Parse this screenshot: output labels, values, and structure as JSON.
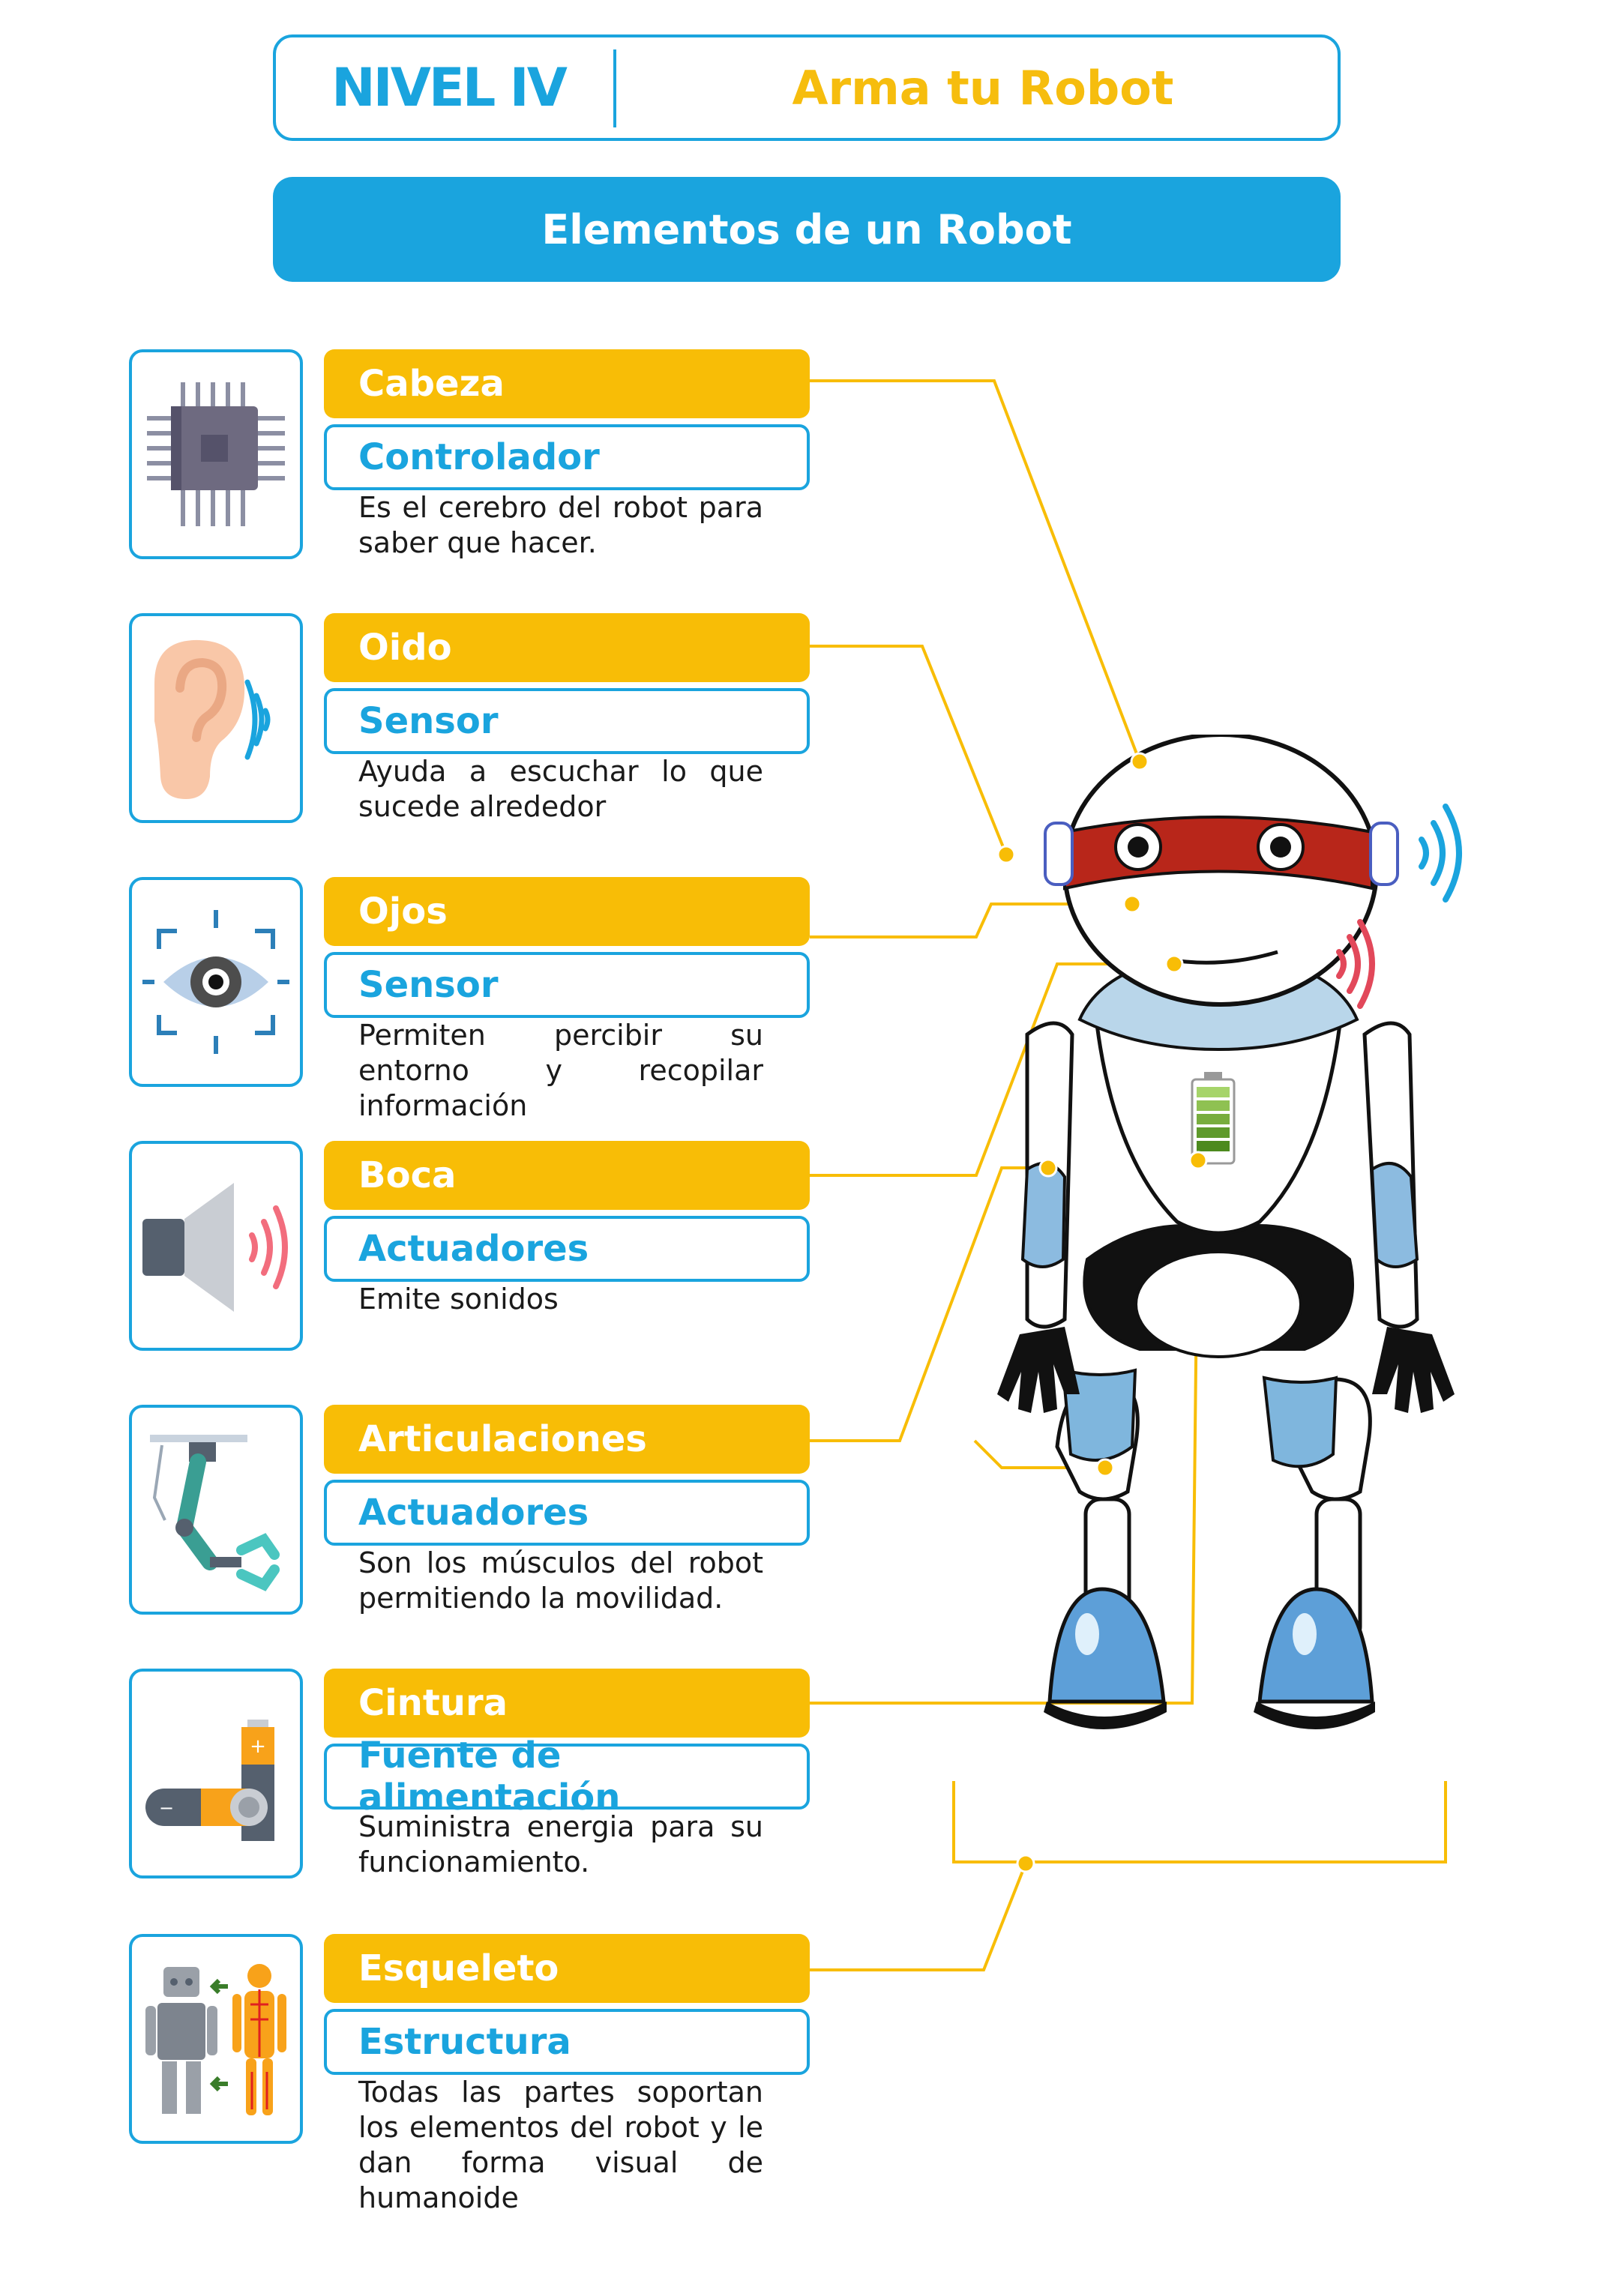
{
  "header": {
    "level": "NIVEL IV",
    "subtitle": "Arma tu Robot"
  },
  "banner": {
    "title": "Elementos de un Robot"
  },
  "colors": {
    "blue": "#1aa4de",
    "yellow": "#f8bd06",
    "text": "#1a1a1a"
  },
  "elements": [
    {
      "part": "Cabeza",
      "type": "Controlador",
      "description": "Es el cerebro del robot para saber que hacer.",
      "icon": "microchip-icon"
    },
    {
      "part": "Oido",
      "type": "Sensor",
      "description": "Ayuda a escuchar lo que sucede alrededor",
      "icon": "ear-sound-icon"
    },
    {
      "part": "Ojos",
      "type": "Sensor",
      "description": "Permiten percibir su entorno y recopilar información",
      "icon": "eye-scan-icon"
    },
    {
      "part": "Boca",
      "type": "Actuadores",
      "description": "Emite sonidos",
      "icon": "speaker-icon"
    },
    {
      "part": "Articulaciones",
      "type": "Actuadores",
      "description": "Son los músculos del robot permitiendo la movilidad.",
      "icon": "robotic-arm-icon"
    },
    {
      "part": "Cintura",
      "type": "Fuente de alimentación",
      "description": "Suministra energia para su funcionamiento.",
      "icon": "battery-icon"
    },
    {
      "part": "Esqueleto",
      "type": "Estructura",
      "description": "Todas las partes soportan los elementos del robot y le dan forma visual de humanoide",
      "icon": "robot-skeleton-icon"
    }
  ]
}
